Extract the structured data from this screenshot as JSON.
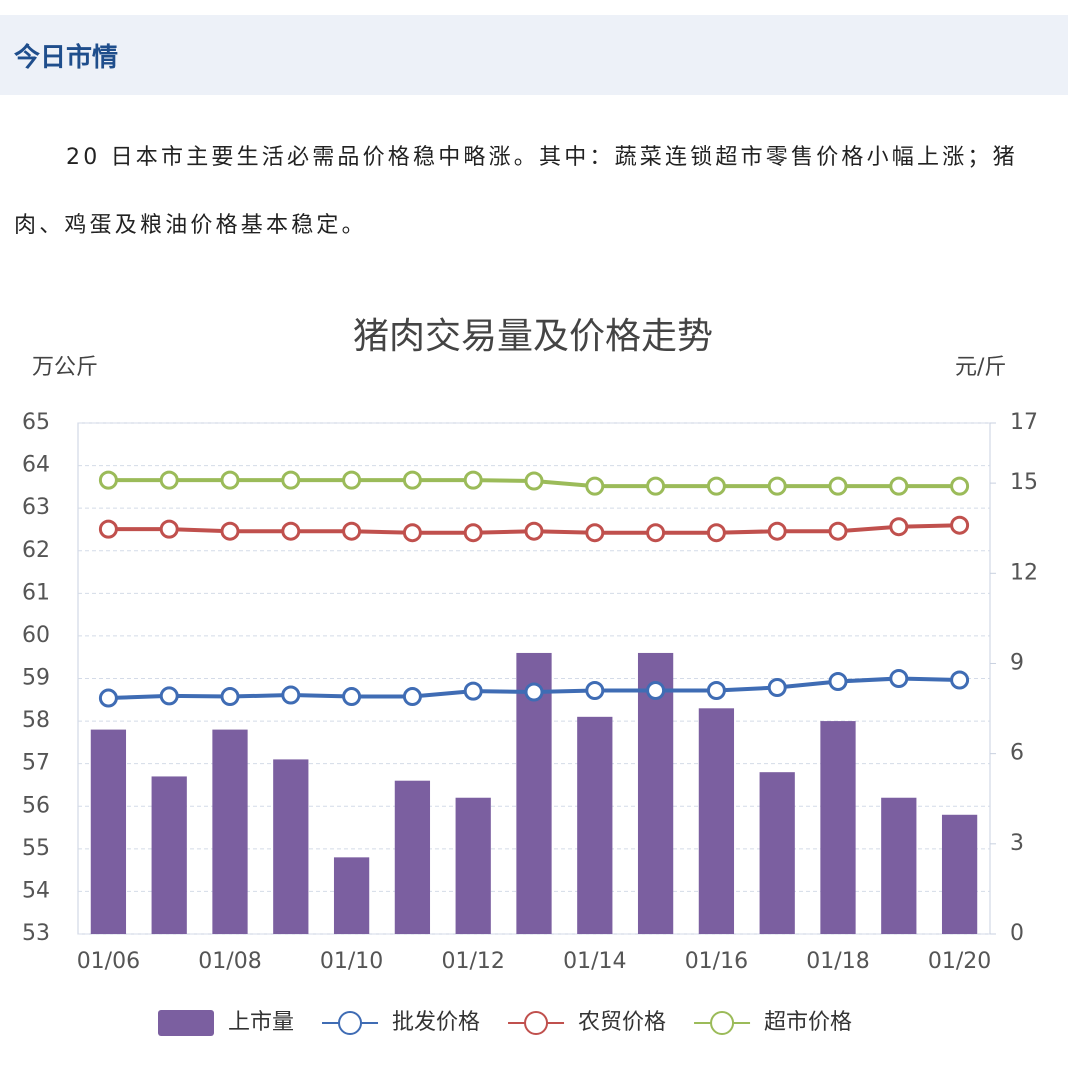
{
  "header": {
    "title": "今日市情"
  },
  "paragraph": "20 日本市主要生活必需品价格稳中略涨。其中：蔬菜连锁超市零售价格小幅上涨；猪肉、鸡蛋及粮油价格基本稳定。",
  "chart_data": {
    "type": "bar-line",
    "title": "猪肉交易量及价格走势",
    "y_label": "万公斤",
    "y2_label": "元/斤",
    "categories": [
      "01/06",
      null,
      "01/08",
      null,
      "01/10",
      null,
      "01/12",
      null,
      "01/14",
      null,
      "01/16",
      null,
      "01/18",
      null,
      "01/20"
    ],
    "ylim": [
      53,
      65
    ],
    "yticks": [
      53,
      54,
      55,
      56,
      57,
      58,
      59,
      60,
      61,
      62,
      63,
      64,
      65
    ],
    "y2lim": [
      0,
      17
    ],
    "y2ticks": [
      0,
      3,
      6,
      9,
      12,
      15,
      17
    ],
    "grid": true,
    "series": [
      {
        "name": "上市量",
        "type": "bar",
        "color": "#7b5fa0",
        "values": [
          57.8,
          56.7,
          57.8,
          57.1,
          54.8,
          56.6,
          56.2,
          59.6,
          58.1,
          59.6,
          58.3,
          56.8,
          58.0,
          56.2,
          55.8
        ]
      },
      {
        "name": "批发价格",
        "type": "line",
        "axis": "y2",
        "color": "#3f6cb4",
        "values": [
          7.85,
          7.92,
          7.9,
          7.95,
          7.9,
          7.9,
          8.08,
          8.05,
          8.1,
          8.1,
          8.1,
          8.2,
          8.4,
          8.5,
          8.45
        ]
      },
      {
        "name": "农贸价格",
        "type": "line",
        "axis": "y2",
        "color": "#c0504d",
        "values": [
          13.47,
          13.47,
          13.4,
          13.4,
          13.4,
          13.35,
          13.35,
          13.4,
          13.35,
          13.35,
          13.35,
          13.4,
          13.4,
          13.55,
          13.6
        ]
      },
      {
        "name": "超市价格",
        "type": "line",
        "axis": "y2",
        "color": "#9bbb59",
        "values": [
          15.1,
          15.1,
          15.1,
          15.1,
          15.1,
          15.1,
          15.1,
          15.07,
          14.9,
          14.9,
          14.9,
          14.9,
          14.9,
          14.9,
          14.9
        ]
      }
    ]
  }
}
